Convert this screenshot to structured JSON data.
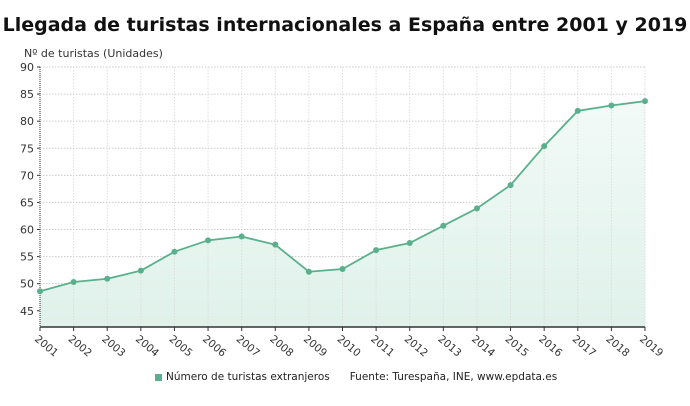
{
  "chart_data": {
    "type": "area",
    "title": "Llegada de turistas internacionales a España entre 2001 y 2019",
    "ylabel": "Nº de turistas (Unidades)",
    "xlabel": "",
    "categories": [
      "2001",
      "2002",
      "2003",
      "2004",
      "2005",
      "2006",
      "2007",
      "2008",
      "2009",
      "2010",
      "2011",
      "2012",
      "2013",
      "2014",
      "2015",
      "2016",
      "2017",
      "2018",
      "2019"
    ],
    "series": [
      {
        "name": "Número de turistas extranjeros",
        "values": [
          48.6,
          50.3,
          50.9,
          52.4,
          55.9,
          58.0,
          58.7,
          57.2,
          52.2,
          52.7,
          56.2,
          57.5,
          60.7,
          63.9,
          68.2,
          75.4,
          81.9,
          82.9,
          83.7
        ]
      }
    ],
    "ylim": [
      42,
      90
    ],
    "yticks": [
      45,
      50,
      55,
      60,
      65,
      70,
      75,
      80,
      85,
      90
    ],
    "grid": true,
    "legend": "bottom",
    "colors": {
      "line": "#5aaf8c",
      "fill": "#dff1ea"
    }
  },
  "source": "Fuente: Turespaña, INE, www.epdata.es"
}
